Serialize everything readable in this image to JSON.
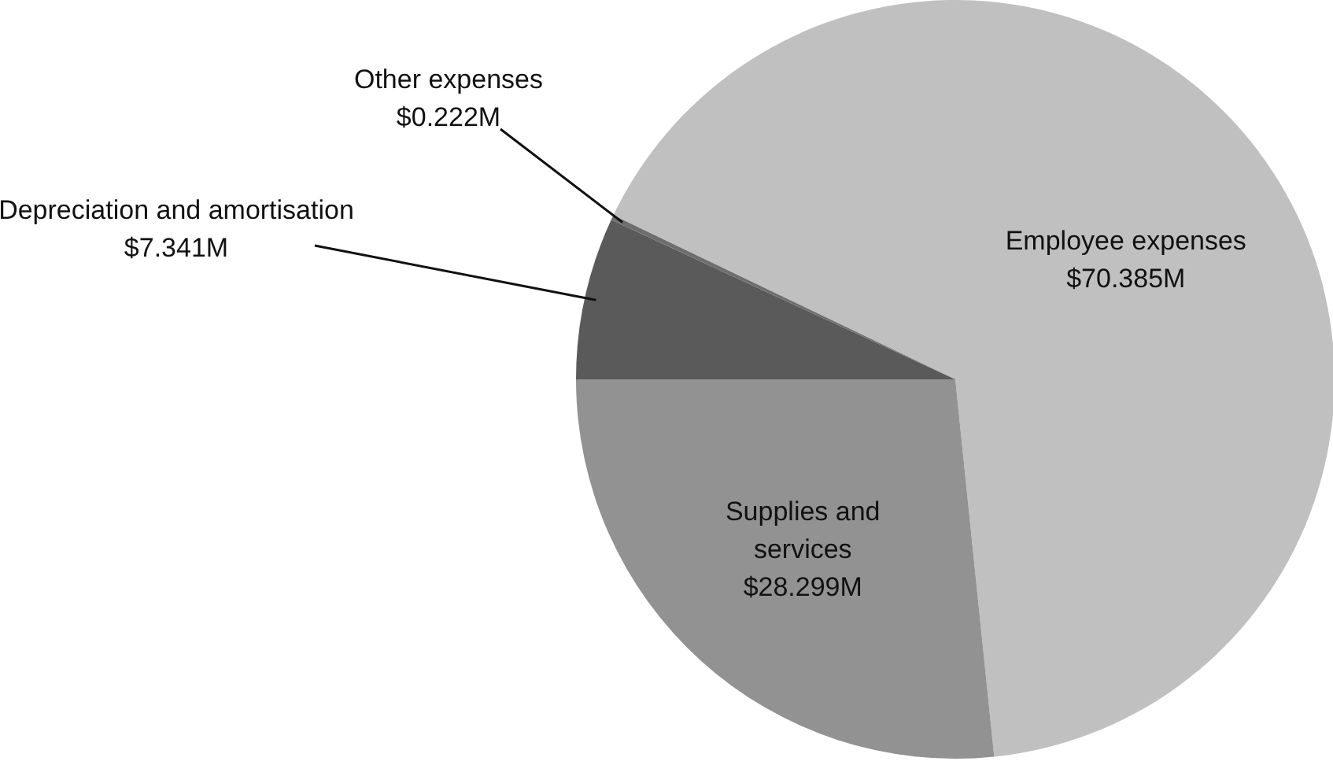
{
  "chart_data": {
    "type": "pie",
    "categories": [
      "Employee expenses",
      "Supplies and services",
      "Depreciation and amortisation",
      "Other expenses"
    ],
    "values": [
      70.385,
      28.299,
      7.341,
      0.222
    ],
    "value_labels": [
      "$70.385M",
      "$28.299M",
      "$7.341M",
      "$0.222M"
    ],
    "colors": [
      "#c0c0c0",
      "#929292",
      "#5a5a5a",
      "#6e6e6e"
    ]
  }
}
